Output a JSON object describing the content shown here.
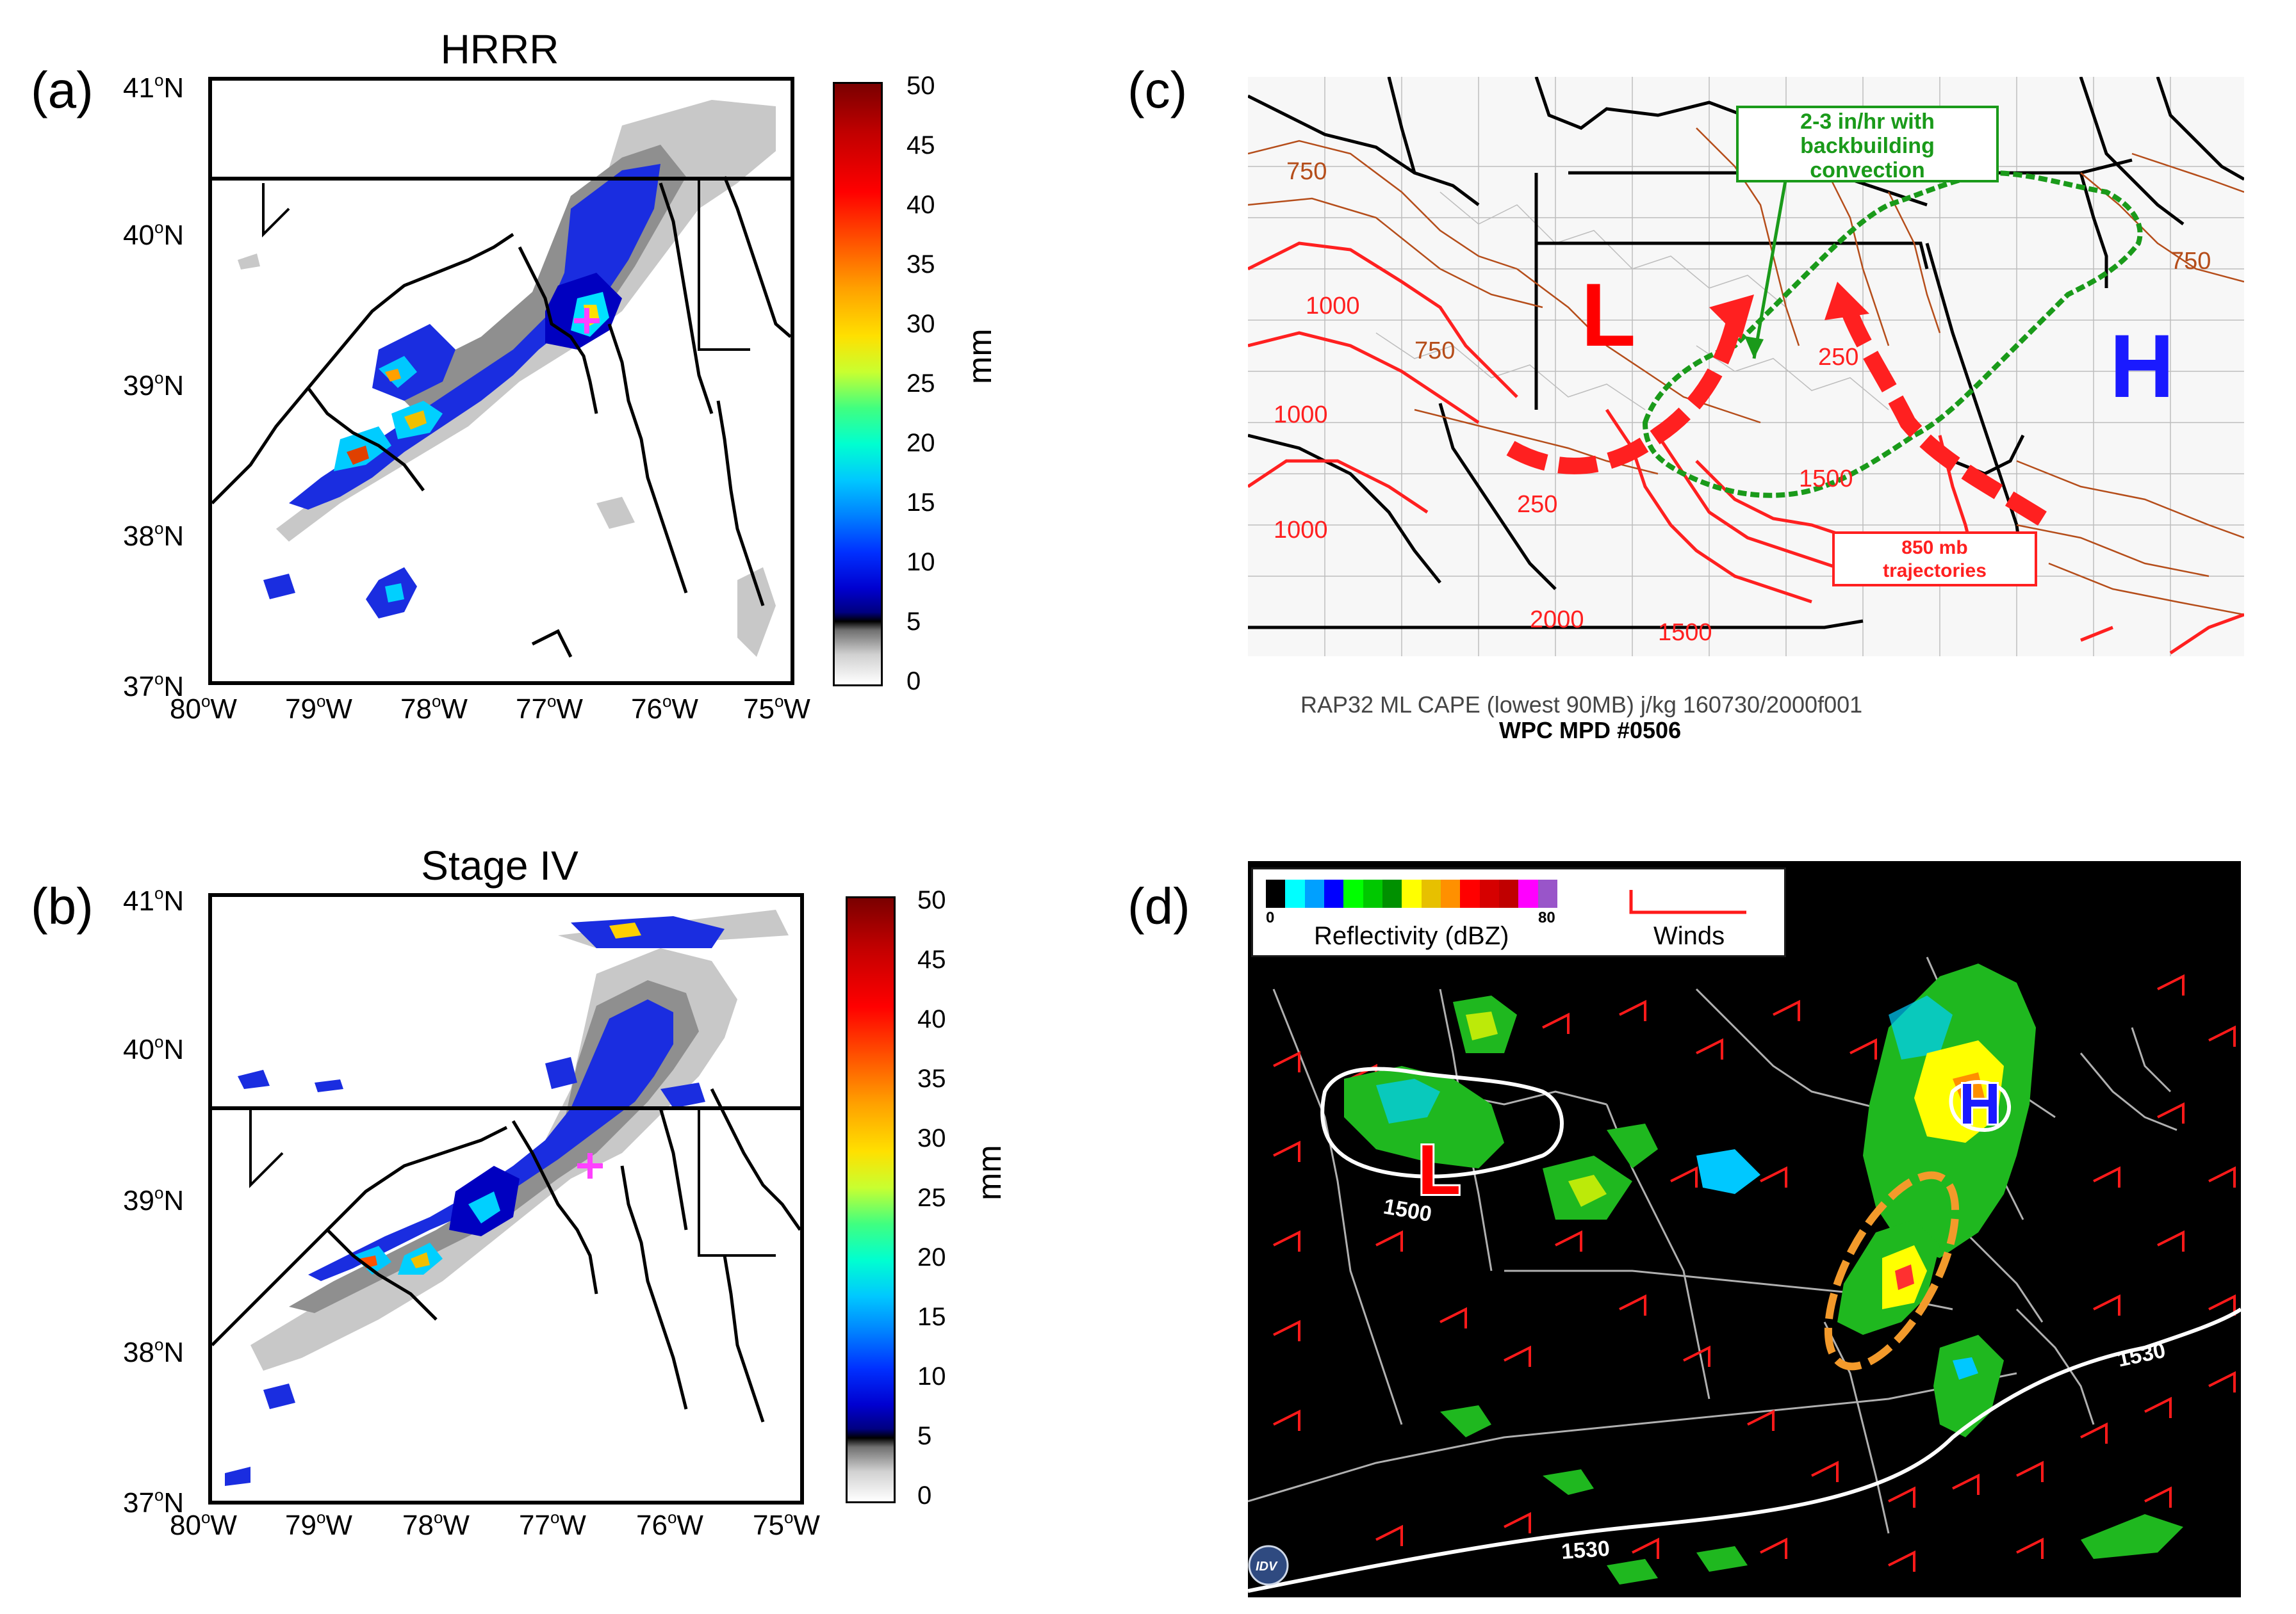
{
  "panels": {
    "a": {
      "letter": "(a)",
      "title": "HRRR",
      "lat_labels": [
        "41",
        "40",
        "39",
        "38",
        "37"
      ],
      "lon_labels": [
        "80",
        "79",
        "78",
        "77",
        "76",
        "75"
      ],
      "lat_hemi": "N",
      "lon_hemi": "W",
      "deg": "o",
      "colorbar_ticks": [
        "50",
        "45",
        "40",
        "35",
        "30",
        "25",
        "20",
        "15",
        "10",
        "5",
        "0"
      ],
      "colorbar_unit": "mm"
    },
    "b": {
      "letter": "(b)",
      "title": "Stage IV",
      "lat_labels": [
        "41",
        "40",
        "39",
        "38",
        "37"
      ],
      "lon_labels": [
        "80",
        "79",
        "78",
        "77",
        "76",
        "75"
      ],
      "lat_hemi": "N",
      "lon_hemi": "W",
      "deg": "o",
      "colorbar_ticks": [
        "50",
        "45",
        "40",
        "35",
        "30",
        "25",
        "20",
        "15",
        "10",
        "5",
        "0"
      ],
      "colorbar_unit": "mm"
    },
    "c": {
      "letter": "(c)",
      "annotation_box": [
        "2-3 in/hr with",
        "backbuilding",
        "convection"
      ],
      "trajectories_box": [
        "850 mb",
        "trajectories"
      ],
      "low_label": "L",
      "high_label": "H",
      "contour_labels": [
        "750",
        "1000",
        "750",
        "1000",
        "1000",
        "250",
        "2000",
        "1500",
        "250",
        "750",
        "1500"
      ],
      "caption_line1": "RAP32 ML CAPE (lowest 90MB) j/kg 160730/2000f001",
      "caption_line2": "WPC MPD #0506"
    },
    "d": {
      "letter": "(d)",
      "legend_min": "0",
      "legend_max": "80",
      "legend_reflectivity": "Reflectivity (dBZ)",
      "legend_winds": "Winds",
      "low_label": "L",
      "high_label": "H",
      "contour_labels": [
        "1500",
        "1530",
        "1530"
      ],
      "logo_text": "IDV"
    }
  },
  "colors": {
    "radar_scale": [
      "#000000",
      "#00ffff",
      "#00a0ff",
      "#0000ff",
      "#00ff00",
      "#00c800",
      "#009000",
      "#ffff00",
      "#e7c000",
      "#ff9000",
      "#ff0000",
      "#d60000",
      "#c00000",
      "#ff00ff",
      "#9955c9"
    ],
    "low": "#ff0000",
    "high": "#1a1aff",
    "annotation_green": "#1a9a1a",
    "trajectory_red": "#ff2020",
    "ellipse_orange": "#f39a2b"
  }
}
